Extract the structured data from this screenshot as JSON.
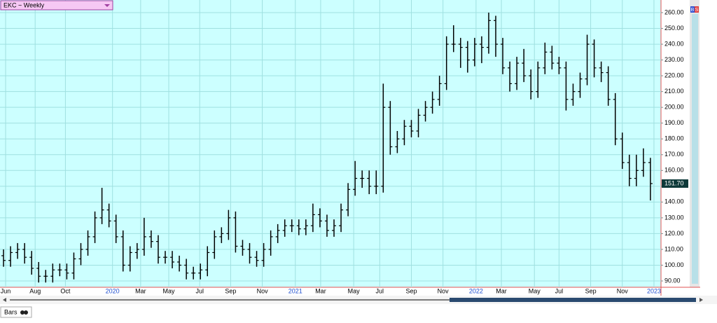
{
  "chart_data": {
    "type": "ohlc",
    "title": "EKC ~ Weekly",
    "panel_label": "Bars",
    "buttons": [
      "B",
      "S"
    ],
    "xlim": [
      0,
      94
    ],
    "ylim": [
      86,
      268
    ],
    "grid": true,
    "xticks": [
      {
        "value": 0.8,
        "label": "Jun"
      },
      {
        "value": 5,
        "label": "Aug"
      },
      {
        "value": 9.3,
        "label": "Oct"
      },
      {
        "value": 16,
        "label": "2020"
      },
      {
        "value": 20,
        "label": "Mar"
      },
      {
        "value": 24,
        "label": "May"
      },
      {
        "value": 28.4,
        "label": "Jul"
      },
      {
        "value": 32.8,
        "label": "Sep"
      },
      {
        "value": 37.3,
        "label": "Nov"
      },
      {
        "value": 42,
        "label": "2021"
      },
      {
        "value": 45.6,
        "label": "Mar"
      },
      {
        "value": 50.3,
        "label": "May"
      },
      {
        "value": 54,
        "label": "Jul"
      },
      {
        "value": 58.5,
        "label": "Sep"
      },
      {
        "value": 63,
        "label": "Nov"
      },
      {
        "value": 67.7,
        "label": "2022"
      },
      {
        "value": 71.3,
        "label": "Mar"
      },
      {
        "value": 76,
        "label": "May"
      },
      {
        "value": 79.5,
        "label": "Jul"
      },
      {
        "value": 84,
        "label": "Sep"
      },
      {
        "value": 88.5,
        "label": "Nov"
      },
      {
        "value": 93,
        "label": "2023"
      }
    ],
    "yticks": [
      {
        "value": 90,
        "label": "90.00"
      },
      {
        "value": 100,
        "label": "100.00"
      },
      {
        "value": 110,
        "label": "110.00"
      },
      {
        "value": 120,
        "label": "120.00"
      },
      {
        "value": 130,
        "label": "130.00"
      },
      {
        "value": 140,
        "label": "140.00"
      },
      {
        "value": 150,
        "label": "150.00"
      },
      {
        "value": 160,
        "label": "160.00"
      },
      {
        "value": 170,
        "label": "170.00"
      },
      {
        "value": 180,
        "label": "180.00"
      },
      {
        "value": 190,
        "label": "190.00"
      },
      {
        "value": 200,
        "label": "200.00"
      },
      {
        "value": 210,
        "label": "210.00"
      },
      {
        "value": 220,
        "label": "220.00"
      },
      {
        "value": 230,
        "label": "230.00"
      },
      {
        "value": 240,
        "label": "240.00"
      },
      {
        "value": 250,
        "label": "250.00"
      },
      {
        "value": 260,
        "label": "260.00"
      }
    ],
    "last_price": {
      "value": 151.7,
      "label": "151.70"
    },
    "color": "#000000",
    "ohlc": {
      "open": [
        106,
        103,
        108,
        110,
        105,
        98,
        93,
        93,
        97,
        97,
        95,
        104,
        110,
        118,
        130,
        135,
        128,
        118,
        100,
        108,
        110,
        118,
        115,
        105,
        105,
        102,
        100,
        95,
        95,
        97,
        108,
        118,
        120,
        130,
        112,
        110,
        105,
        103,
        110,
        118,
        122,
        125,
        125,
        123,
        125,
        132,
        128,
        122,
        125,
        135,
        148,
        155,
        155,
        150,
        150,
        200,
        175,
        180,
        188,
        185,
        195,
        200,
        205,
        215,
        240,
        240,
        238,
        230,
        240,
        238,
        255,
        240,
        225,
        215,
        228,
        220,
        210,
        225,
        235,
        228,
        225,
        205,
        210,
        218,
        240,
        225,
        222,
        205,
        180,
        165,
        155,
        160,
        165
      ],
      "high": [
        110,
        112,
        114,
        114,
        109,
        102,
        97,
        101,
        101,
        101,
        108,
        114,
        122,
        134,
        149,
        139,
        132,
        122,
        112,
        114,
        130,
        122,
        119,
        109,
        109,
        106,
        104,
        99,
        101,
        112,
        122,
        124,
        135,
        134,
        116,
        114,
        109,
        114,
        122,
        126,
        129,
        129,
        129,
        129,
        139,
        136,
        132,
        129,
        139,
        152,
        166,
        160,
        160,
        160,
        215,
        204,
        185,
        192,
        192,
        199,
        204,
        210,
        220,
        245,
        252,
        244,
        242,
        244,
        245,
        260,
        258,
        244,
        229,
        232,
        237,
        224,
        229,
        241,
        239,
        232,
        229,
        215,
        222,
        246,
        243,
        229,
        226,
        209,
        184,
        170,
        170,
        174,
        168
      ],
      "low": [
        99,
        99,
        104,
        101,
        94,
        89,
        89,
        89,
        93,
        91,
        91,
        100,
        106,
        114,
        126,
        124,
        114,
        96,
        96,
        104,
        106,
        111,
        101,
        101,
        98,
        96,
        91,
        91,
        91,
        93,
        104,
        114,
        116,
        108,
        106,
        101,
        99,
        99,
        106,
        114,
        118,
        121,
        119,
        119,
        121,
        124,
        118,
        118,
        121,
        131,
        144,
        149,
        145,
        145,
        146,
        170,
        171,
        176,
        181,
        181,
        191,
        196,
        201,
        211,
        235,
        225,
        222,
        226,
        228,
        234,
        232,
        221,
        210,
        211,
        216,
        205,
        206,
        221,
        224,
        221,
        198,
        201,
        206,
        214,
        219,
        216,
        201,
        176,
        161,
        150,
        150,
        156,
        141
      ],
      "close": [
        103,
        108,
        110,
        105,
        98,
        93,
        93,
        97,
        97,
        95,
        104,
        110,
        118,
        130,
        135,
        128,
        118,
        100,
        108,
        110,
        118,
        115,
        105,
        105,
        102,
        100,
        95,
        95,
        97,
        108,
        118,
        120,
        130,
        112,
        110,
        105,
        103,
        110,
        118,
        122,
        125,
        125,
        123,
        125,
        132,
        128,
        122,
        125,
        135,
        148,
        155,
        155,
        150,
        150,
        200,
        175,
        180,
        188,
        185,
        195,
        200,
        205,
        215,
        240,
        240,
        238,
        230,
        240,
        238,
        255,
        240,
        225,
        215,
        228,
        220,
        210,
        225,
        235,
        228,
        225,
        205,
        210,
        218,
        240,
        225,
        222,
        205,
        180,
        165,
        155,
        160,
        165,
        151.7
      ]
    }
  }
}
